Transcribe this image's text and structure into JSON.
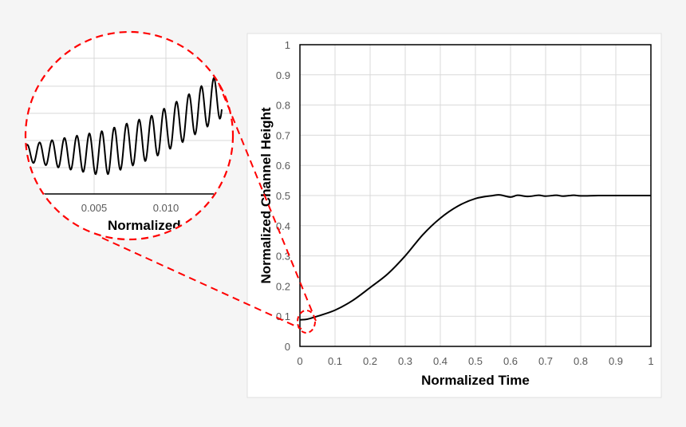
{
  "chart_data": {
    "type": "line",
    "xlabel": "Normalized Time",
    "ylabel": "Normalized Channel Height",
    "xlim": [
      0,
      1
    ],
    "ylim": [
      0,
      1
    ],
    "x_ticks": [
      "0",
      "0.1",
      "0.2",
      "0.3",
      "0.4",
      "0.5",
      "0.6",
      "0.7",
      "0.8",
      "0.9",
      "1"
    ],
    "y_ticks": [
      "0",
      "0.1",
      "0.2",
      "0.3",
      "0.4",
      "0.5",
      "0.6",
      "0.7",
      "0.8",
      "0.9",
      "1"
    ],
    "grid": true,
    "line_color": "#000000",
    "series": [
      {
        "x": [
          0,
          0.02,
          0.05,
          0.1,
          0.15,
          0.2,
          0.25,
          0.3,
          0.35,
          0.4,
          0.45,
          0.5,
          0.55,
          0.57,
          0.6,
          0.62,
          0.65,
          0.68,
          0.7,
          0.73,
          0.75,
          0.78,
          0.8,
          0.85,
          0.9,
          1
        ],
        "y": [
          0.088,
          0.09,
          0.1,
          0.12,
          0.152,
          0.195,
          0.24,
          0.3,
          0.37,
          0.425,
          0.465,
          0.49,
          0.5,
          0.502,
          0.495,
          0.501,
          0.497,
          0.501,
          0.498,
          0.501,
          0.498,
          0.501,
          0.499,
          0.5,
          0.5,
          0.5
        ]
      }
    ],
    "inset": {
      "x_ticks": [
        "0.005",
        "0.010"
      ],
      "xlabel_visible": "Normalized",
      "highlight_color": "#ff0000",
      "description_of_region": "zoom of oscillation near t = 0"
    }
  }
}
